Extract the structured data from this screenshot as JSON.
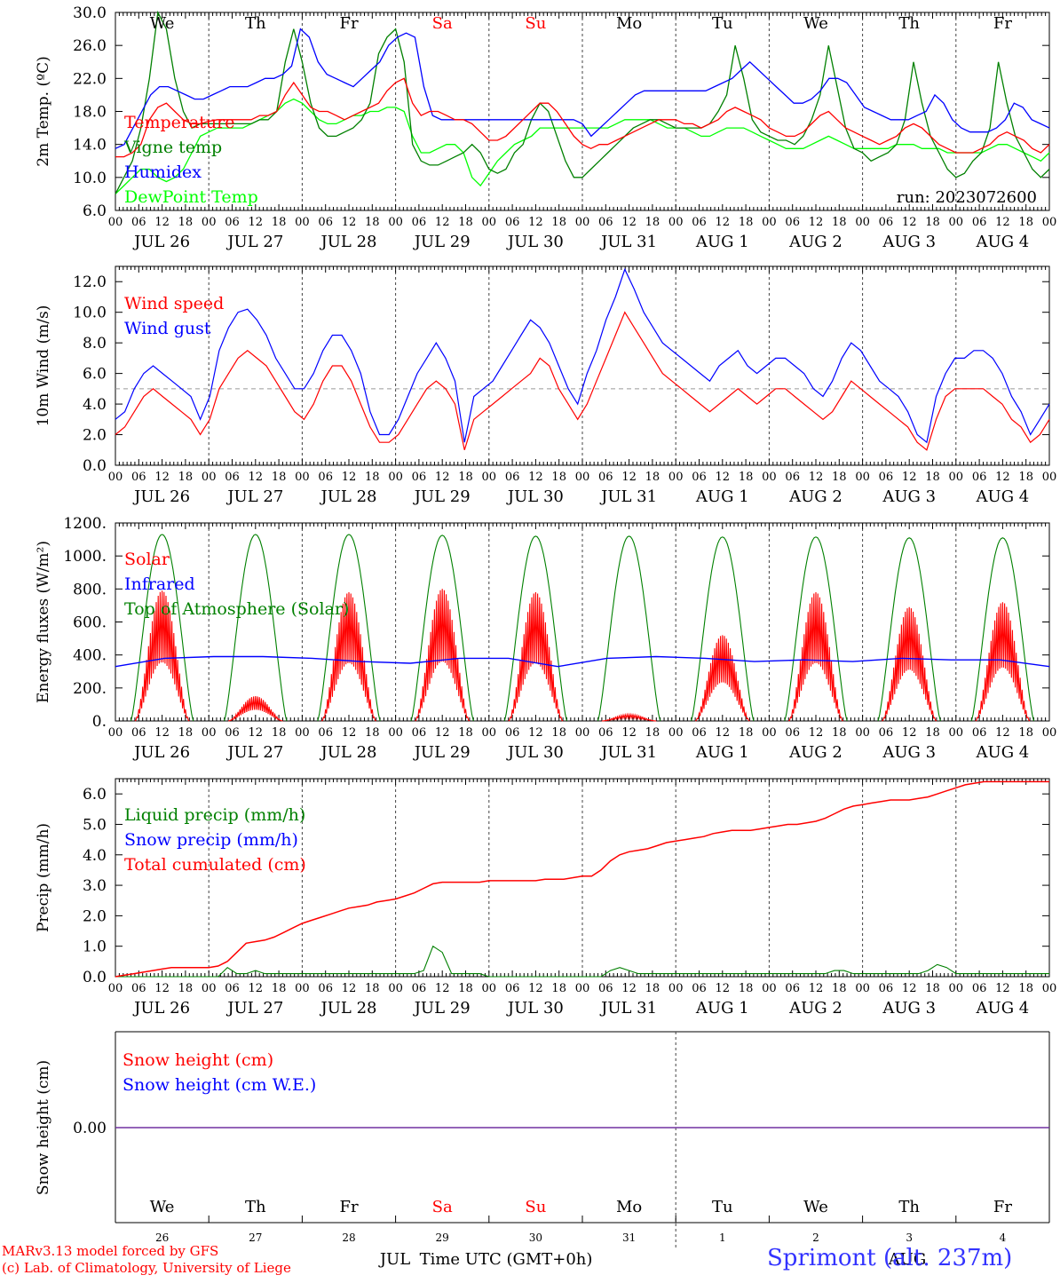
{
  "chart_data": [
    {
      "type": "line",
      "ylabel": "2m Temp. (ºC)",
      "ylim": [
        6,
        30
      ],
      "yticks": [
        "6.0",
        "10.0",
        "14.0",
        "18.0",
        "22.0",
        "26.0",
        "30.0"
      ],
      "weekdays": [
        "We",
        "Th",
        "Fr",
        "Sa",
        "Su",
        "Mo",
        "Tu",
        "We",
        "Th",
        "Fr"
      ],
      "annotation": "run: 2023072600",
      "series": [
        {
          "name": "Temperature",
          "color": "#ff0000",
          "values": [
            12.5,
            12.5,
            13,
            14,
            17,
            18.5,
            19,
            18,
            17,
            16.5,
            16.5,
            16.8,
            17,
            17,
            17,
            17,
            17,
            17.5,
            17.5,
            18,
            20,
            21.5,
            20,
            18.5,
            18,
            18,
            17.5,
            17,
            17.5,
            18,
            18.5,
            19,
            20.5,
            21.5,
            22,
            19,
            17.5,
            18,
            18,
            17.5,
            17,
            17,
            16.5,
            15.5,
            14.5,
            14.5,
            15,
            16,
            17,
            18,
            19,
            19,
            18,
            16.5,
            15,
            14,
            13.5,
            14,
            14,
            14.5,
            15,
            15.5,
            16,
            16.5,
            17,
            17,
            17,
            16.5,
            16.5,
            16,
            16.5,
            17,
            18,
            18.5,
            18,
            17.5,
            17,
            16,
            15.5,
            15,
            15,
            15.5,
            16.5,
            17.5,
            18,
            17,
            16,
            15.5,
            15,
            14.5,
            14,
            14.5,
            15,
            16,
            16.5,
            16,
            15,
            14,
            13.5,
            13,
            13,
            13,
            13.5,
            14,
            15,
            15.5,
            15,
            14.5,
            13.5,
            13,
            14
          ]
        },
        {
          "name": "Vigne temp",
          "color": "#008000",
          "values": [
            8,
            10,
            12,
            16,
            22,
            30,
            28,
            22,
            18,
            16,
            16.5,
            16.5,
            16.5,
            16.5,
            16.5,
            16.5,
            16.5,
            17,
            17,
            18,
            24,
            28,
            24,
            19,
            16,
            15,
            15,
            15.5,
            16,
            17,
            19,
            25,
            27,
            28,
            24,
            14,
            12,
            11.5,
            11.5,
            12,
            12.5,
            13,
            14,
            13,
            11,
            10.5,
            11,
            13,
            14,
            17,
            19,
            18,
            15,
            12,
            10,
            10,
            11,
            12,
            13,
            14,
            15,
            16,
            16.5,
            17,
            17,
            16.5,
            16,
            16,
            16,
            16,
            16.5,
            18,
            20,
            26,
            22,
            17,
            15.5,
            15,
            14.5,
            14.5,
            14,
            15,
            17,
            20,
            26,
            21,
            16,
            13.5,
            13,
            12,
            12.5,
            13,
            14,
            17,
            24,
            19,
            15,
            13,
            11,
            10,
            10.5,
            12,
            13,
            16,
            24,
            19,
            15,
            13,
            11,
            10,
            11
          ]
        },
        {
          "name": "Humidex",
          "color": "#0000ff",
          "values": [
            13.5,
            14,
            16,
            18,
            20,
            21,
            21,
            20.5,
            20,
            19.5,
            19.5,
            20,
            20.5,
            21,
            21,
            21,
            21.5,
            22,
            22,
            22.5,
            23.5,
            28,
            27,
            24,
            22.5,
            22,
            21.5,
            21,
            22,
            23,
            24,
            26,
            27,
            27.5,
            27,
            21,
            17.5,
            17,
            17,
            17,
            17,
            17,
            17,
            17,
            17,
            17,
            17,
            17,
            17,
            17,
            17,
            17,
            17,
            16.5,
            15,
            16,
            17,
            18,
            19,
            20,
            20.5,
            20.5,
            20.5,
            20.5,
            20.5,
            20.5,
            20.5,
            20.5,
            21,
            21.5,
            22,
            23,
            24,
            23,
            22,
            21,
            20,
            19,
            19,
            19.5,
            20.5,
            22,
            22,
            21.5,
            20,
            18.5,
            18,
            17.5,
            17,
            17,
            17,
            17.5,
            18,
            20,
            19,
            17,
            16,
            15.5,
            15.5,
            15.5,
            16,
            17,
            19,
            18.5,
            17,
            16.5,
            16
          ]
        },
        {
          "name": "DewPoint Temp",
          "color": "#00ff00",
          "values": [
            8,
            9,
            10,
            11,
            11,
            10,
            9.5,
            10,
            11,
            13,
            15,
            15.5,
            16,
            16,
            16,
            16,
            16.5,
            17,
            17.5,
            18,
            19,
            19.5,
            19,
            18,
            17,
            16.5,
            16.5,
            17,
            17.5,
            17.5,
            18,
            18,
            18.5,
            18.5,
            18,
            15,
            13,
            13,
            13.5,
            14,
            14,
            13,
            10,
            9,
            10.5,
            12,
            13,
            14,
            14.5,
            15,
            16,
            16,
            16,
            16,
            16,
            16,
            16,
            16,
            16,
            16.5,
            17,
            17,
            17,
            17,
            16.5,
            16,
            16,
            16,
            15.5,
            15,
            15,
            15.5,
            16,
            16,
            16,
            15.5,
            15,
            14.5,
            14,
            13.5,
            13.5,
            13.5,
            14,
            14.5,
            15,
            14.5,
            14,
            13.5,
            13.5,
            13.5,
            13.5,
            13.5,
            14,
            14,
            14,
            13.5,
            13.5,
            13.5,
            13,
            13,
            13,
            13,
            13,
            13.5,
            14,
            14,
            13.5,
            13,
            12.5,
            12,
            13
          ]
        }
      ]
    },
    {
      "type": "line",
      "ylabel": "10m Wind (m/s)",
      "ylim": [
        0,
        13
      ],
      "yticks": [
        "0.0",
        "2.0",
        "4.0",
        "6.0",
        "8.0",
        "10.0",
        "12.0"
      ],
      "refline": 5,
      "series": [
        {
          "name": "Wind speed",
          "color": "#ff0000",
          "values": [
            2,
            2.5,
            3.5,
            4.5,
            5,
            4.5,
            4,
            3.5,
            3,
            2,
            3,
            5,
            6,
            7,
            7.5,
            7,
            6.5,
            5.5,
            4.5,
            3.5,
            3,
            4,
            5.5,
            6.5,
            6.5,
            5.5,
            4,
            2.5,
            1.5,
            1.5,
            2,
            3,
            4,
            5,
            5.5,
            5,
            4,
            1,
            3,
            3.5,
            4,
            4.5,
            5,
            5.5,
            6,
            7,
            6.5,
            5,
            4,
            3,
            4,
            5.5,
            7,
            8.5,
            10,
            9,
            8,
            7,
            6,
            5.5,
            5,
            4.5,
            4,
            3.5,
            4,
            4.5,
            5,
            4.5,
            4,
            4.5,
            5,
            5,
            4.5,
            4,
            3.5,
            3,
            3.5,
            4.5,
            5.5,
            5,
            4.5,
            4,
            3.5,
            3,
            2.5,
            1.5,
            1,
            3,
            4.5,
            5,
            5,
            5,
            5,
            4.5,
            4,
            3,
            2.5,
            1.5,
            2,
            3
          ]
        },
        {
          "name": "Wind gust",
          "color": "#0000ff",
          "values": [
            3,
            3.5,
            5,
            6,
            6.5,
            6,
            5.5,
            5,
            4.5,
            3,
            4.5,
            7.5,
            9,
            10,
            10.2,
            9.5,
            8.5,
            7,
            6,
            5,
            5,
            6,
            7.5,
            8.5,
            8.5,
            7.5,
            6,
            3.5,
            2,
            2,
            3,
            4.5,
            6,
            7,
            8,
            7,
            5.5,
            1.5,
            4.5,
            5,
            5.5,
            6.5,
            7.5,
            8.5,
            9.5,
            9,
            8,
            6.5,
            5,
            4,
            6,
            7.5,
            9.5,
            11,
            12.8,
            11.5,
            10,
            9,
            8,
            7.5,
            7,
            6.5,
            6,
            5.5,
            6.5,
            7,
            7.5,
            6.5,
            6,
            6.5,
            7,
            7,
            6.5,
            6,
            5,
            4.5,
            5.5,
            7,
            8,
            7.5,
            6.5,
            5.5,
            5,
            4.5,
            3.5,
            2,
            1.5,
            4.5,
            6,
            7,
            7,
            7.5,
            7.5,
            7,
            6,
            4.5,
            3.5,
            2,
            3,
            4
          ]
        }
      ]
    },
    {
      "type": "line",
      "ylabel": "Energy fluxes (W/m²)",
      "ylim": [
        0,
        1200
      ],
      "yticks": [
        "0.",
        "200.",
        "400.",
        "600.",
        "800.",
        "1000.",
        "1200."
      ],
      "toa_peaks": [
        1130,
        1130,
        1130,
        1125,
        1120,
        1120,
        1115,
        1115,
        1110,
        1110
      ],
      "solar_peaks": [
        790,
        150,
        780,
        800,
        780,
        40,
        520,
        780,
        690,
        720
      ],
      "infrared_level": [
        330,
        380,
        390,
        390,
        380,
        360,
        350,
        380,
        380,
        330,
        380,
        390,
        380,
        360,
        370,
        360,
        380,
        370,
        370,
        330
      ],
      "series": [
        {
          "name": "Solar",
          "color": "#ff0000",
          "values": []
        },
        {
          "name": "Infrared",
          "color": "#0000ff",
          "values": []
        },
        {
          "name": "Top of Atmosphere (Solar)",
          "color": "#008000",
          "values": []
        }
      ]
    },
    {
      "type": "line",
      "ylabel": "Precip (mm/h)",
      "ylim": [
        0,
        6.5
      ],
      "yticks": [
        "0.0",
        "1.0",
        "2.0",
        "3.0",
        "4.0",
        "5.0",
        "6.0"
      ],
      "series": [
        {
          "name": "Liquid precip (mm/h)",
          "color": "#008000",
          "values": [
            0,
            0,
            0,
            0,
            0,
            0,
            0,
            0,
            0,
            0,
            0,
            0,
            0.3,
            0.1,
            0.1,
            0.2,
            0.1,
            0.1,
            0.1,
            0.1,
            0.1,
            0.1,
            0.1,
            0.1,
            0.1,
            0.1,
            0.1,
            0.1,
            0.1,
            0.1,
            0.1,
            0.1,
            0.1,
            0.2,
            1.0,
            0.8,
            0.1,
            0.1,
            0.1,
            0.1,
            0,
            0,
            0,
            0,
            0,
            0,
            0,
            0,
            0,
            0,
            0,
            0,
            0,
            0.2,
            0.3,
            0.2,
            0.1,
            0.1,
            0.1,
            0.1,
            0.1,
            0.1,
            0.1,
            0.1,
            0.1,
            0.1,
            0.1,
            0.1,
            0.1,
            0.1,
            0.1,
            0.1,
            0.1,
            0.1,
            0.1,
            0.1,
            0.1,
            0.2,
            0.2,
            0.1,
            0.1,
            0.1,
            0.1,
            0.1,
            0.1,
            0.1,
            0.1,
            0.2,
            0.4,
            0.3,
            0.1,
            0.1,
            0.1,
            0.1,
            0.1,
            0.1,
            0.1,
            0.1,
            0.1,
            0.1,
            0.1
          ]
        },
        {
          "name": "Snow precip (mm/h)",
          "color": "#0000ff",
          "values": []
        },
        {
          "name": "Total cumulated (cm)",
          "color": "#ff0000",
          "values": [
            0,
            0.05,
            0.1,
            0.15,
            0.2,
            0.25,
            0.3,
            0.3,
            0.3,
            0.3,
            0.3,
            0.35,
            0.5,
            0.8,
            1.1,
            1.15,
            1.2,
            1.3,
            1.45,
            1.6,
            1.75,
            1.85,
            1.95,
            2.05,
            2.15,
            2.25,
            2.3,
            2.35,
            2.45,
            2.5,
            2.55,
            2.65,
            2.75,
            2.9,
            3.05,
            3.1,
            3.1,
            3.1,
            3.1,
            3.1,
            3.15,
            3.15,
            3.15,
            3.15,
            3.15,
            3.15,
            3.2,
            3.2,
            3.2,
            3.25,
            3.3,
            3.3,
            3.5,
            3.8,
            4.0,
            4.1,
            4.15,
            4.2,
            4.3,
            4.4,
            4.45,
            4.5,
            4.55,
            4.6,
            4.7,
            4.75,
            4.8,
            4.8,
            4.8,
            4.85,
            4.9,
            4.95,
            5.0,
            5.0,
            5.05,
            5.1,
            5.2,
            5.35,
            5.5,
            5.6,
            5.65,
            5.7,
            5.75,
            5.8,
            5.8,
            5.8,
            5.85,
            5.9,
            6.0,
            6.1,
            6.2,
            6.3,
            6.35,
            6.4,
            6.4,
            6.4,
            6.4,
            6.4,
            6.4,
            6.4,
            6.4
          ]
        }
      ]
    },
    {
      "type": "line",
      "ylabel": "Snow height (cm)",
      "ytick": "0.00",
      "series": [
        {
          "name": "Snow height (cm)",
          "color": "#ff0000",
          "values": [
            0,
            0
          ]
        },
        {
          "name": "Snow height (cm W.E.)",
          "color": "#0000ff",
          "values": [
            0,
            0
          ]
        }
      ],
      "weekdays": [
        "We",
        "Th",
        "Fr",
        "Sa",
        "Su",
        "Mo",
        "Tu",
        "We",
        "Th",
        "Fr"
      ],
      "day_numbers": [
        "26",
        "27",
        "28",
        "29",
        "30",
        "31",
        "1",
        "2",
        "3",
        "4"
      ],
      "month_labels": [
        "JUL",
        "AUG"
      ],
      "xlabel": "Time UTC (GMT+0h)"
    }
  ],
  "hour_ticks": [
    "00",
    "06",
    "12",
    "18"
  ],
  "date_labels": [
    "JUL 26",
    "JUL 27",
    "JUL 28",
    "JUL 29",
    "JUL 30",
    "JUL 31",
    "AUG  1",
    "AUG  2",
    "AUG  3",
    "AUG  4"
  ],
  "weekend_days": [
    3,
    4
  ],
  "footer": {
    "model_line": "MARv3.13 model forced by GFS",
    "credit_line": "(c) Lab. of Climatology, University of Liege",
    "station": "Sprimont (alt. 237m)"
  }
}
